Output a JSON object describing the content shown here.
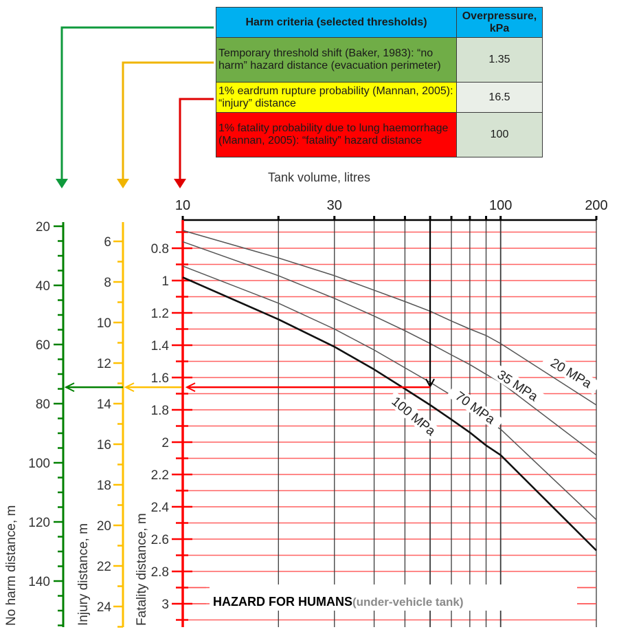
{
  "legend": {
    "header": {
      "criteria": "Harm criteria (selected thresholds)",
      "overpressure": "Overpressure, kPa"
    },
    "rows": [
      {
        "criteria": "Temporary threshold shift (Baker, 1983): “no harm” hazard distance (evacuation perimeter)",
        "overpressure": "1.35",
        "color": "#70ad47",
        "arrow_color": "#0f9a3c"
      },
      {
        "criteria": "1% eardrum rupture probability (Mannan, 2005):  “injury” distance",
        "overpressure": "16.5",
        "color": "#ffff00",
        "arrow_color": "#f0b400"
      },
      {
        "criteria": "1% fatality probability due to  lung haemorrhage (Mannan, 2005): “fatality” hazard distance",
        "overpressure": "100",
        "color": "#ff0000",
        "arrow_color": "#e00000"
      }
    ]
  },
  "footer": {
    "title": "HAZARD FOR HUMANS",
    "subtitle": "(under-vehicle tank)"
  },
  "chart_data": {
    "type": "line",
    "title": "HAZARD FOR HUMANS (under-vehicle tank)",
    "xlabel": "Tank volume, litres",
    "x_scale": "log",
    "xlim": [
      10,
      200
    ],
    "x_tick_labels": [
      "10",
      "30",
      "100",
      "200"
    ],
    "x_gridlines": [
      10,
      20,
      30,
      40,
      50,
      60,
      70,
      80,
      90,
      100,
      200
    ],
    "y_axes": [
      {
        "label": "Fatality distance, m",
        "color": "#ff0000",
        "ticks": [
          "0.8",
          "1",
          "1.2",
          "1.4",
          "1.6",
          "1.8",
          "2",
          "2.2",
          "2.4",
          "2.6",
          "2.8",
          "3"
        ],
        "range": [
          0.7,
          3.1
        ],
        "minor_step": 0.1
      },
      {
        "label": "Injury distance, m",
        "color": "#ffc000",
        "ticks": [
          "6",
          "8",
          "10",
          "12",
          "14",
          "16",
          "18",
          "20",
          "22",
          "24"
        ],
        "range": [
          5.3,
          24.8
        ],
        "minor_step": 1
      },
      {
        "label": "No harm distance, m",
        "color": "#008000",
        "ticks": [
          "20",
          "40",
          "60",
          "80",
          "100",
          "120",
          "140"
        ],
        "range": [
          20,
          153
        ],
        "minor_step": 5
      }
    ],
    "series": [
      {
        "name": "20 MPa",
        "x": [
          10,
          20,
          30,
          40,
          50,
          60,
          70,
          80,
          90,
          100,
          200
        ],
        "y": [
          0.69,
          0.86,
          0.97,
          1.06,
          1.13,
          1.19,
          1.25,
          1.3,
          1.34,
          1.39,
          1.77
        ],
        "weight": "thin"
      },
      {
        "name": "35 MPa",
        "x": [
          10,
          20,
          30,
          40,
          50,
          60,
          70,
          80,
          90,
          100,
          200
        ],
        "y": [
          0.76,
          0.97,
          1.11,
          1.22,
          1.31,
          1.39,
          1.46,
          1.52,
          1.58,
          1.63,
          2.08
        ],
        "weight": "thin"
      },
      {
        "name": "70 MPa",
        "x": [
          10,
          20,
          30,
          40,
          50,
          60,
          70,
          80,
          90,
          100,
          200
        ],
        "y": [
          0.91,
          1.14,
          1.3,
          1.43,
          1.54,
          1.63,
          1.71,
          1.79,
          1.86,
          1.92,
          2.48
        ],
        "weight": "thin"
      },
      {
        "name": "100 MPa",
        "x": [
          10,
          20,
          30,
          40,
          50,
          60,
          70,
          80,
          90,
          100,
          200
        ],
        "y": [
          0.98,
          1.24,
          1.41,
          1.55,
          1.67,
          1.77,
          1.86,
          1.94,
          2.02,
          2.08,
          2.67
        ],
        "weight": "bold"
      }
    ],
    "annotations": [
      {
        "type": "arrow",
        "from": {
          "x": 60,
          "y": 0.7
        },
        "to": {
          "x": 60,
          "y": 1.66
        },
        "color": "#000000"
      },
      {
        "type": "arrow",
        "from": {
          "x": 60,
          "y": 1.66
        },
        "to": {
          "axis": "fatality",
          "value": 1.66
        },
        "color": "#ff0000"
      },
      {
        "type": "arrow",
        "to": {
          "axis": "injury",
          "value": 13.4
        },
        "color": "#ffc000"
      },
      {
        "type": "arrow",
        "to": {
          "axis": "no_harm",
          "value": 75
        },
        "color": "#008000"
      }
    ]
  }
}
